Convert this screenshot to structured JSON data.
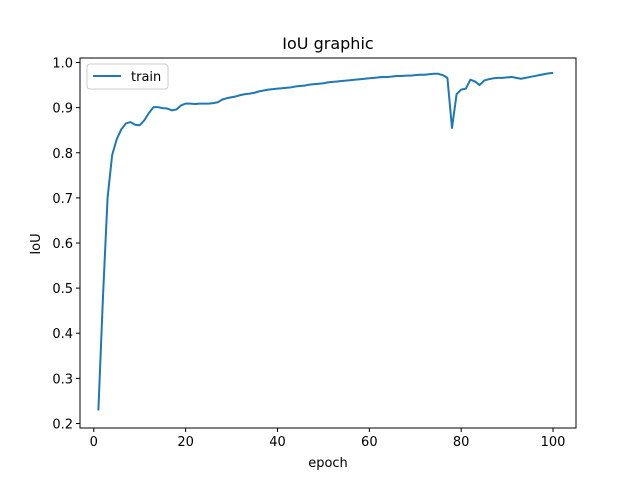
{
  "chart_data": {
    "type": "line",
    "title": "IoU graphic",
    "xlabel": "epoch",
    "ylabel": "IoU",
    "xlim": [
      -3,
      105
    ],
    "ylim": [
      0.19,
      1.01
    ],
    "xticks": [
      0,
      20,
      40,
      60,
      80,
      100
    ],
    "yticks": [
      0.2,
      0.3,
      0.4,
      0.5,
      0.6,
      0.7,
      0.8,
      0.9,
      1.0
    ],
    "grid": false,
    "legend_position": "upper-left",
    "series": [
      {
        "name": "train",
        "color": "#1f77b4",
        "x": [
          1,
          2,
          3,
          4,
          5,
          6,
          7,
          8,
          9,
          10,
          11,
          12,
          13,
          14,
          15,
          16,
          17,
          18,
          19,
          20,
          21,
          22,
          23,
          24,
          25,
          26,
          27,
          28,
          29,
          30,
          31,
          32,
          33,
          34,
          35,
          36,
          37,
          38,
          39,
          40,
          41,
          42,
          43,
          44,
          45,
          46,
          47,
          48,
          49,
          50,
          51,
          52,
          53,
          54,
          55,
          56,
          57,
          58,
          59,
          60,
          61,
          62,
          63,
          64,
          65,
          66,
          67,
          68,
          69,
          70,
          71,
          72,
          73,
          74,
          75,
          76,
          77,
          78,
          79,
          80,
          81,
          82,
          83,
          84,
          85,
          86,
          87,
          88,
          89,
          90,
          91,
          92,
          93,
          94,
          95,
          96,
          97,
          98,
          99,
          100
        ],
        "y": [
          0.229,
          0.48,
          0.7,
          0.795,
          0.83,
          0.852,
          0.865,
          0.868,
          0.862,
          0.861,
          0.872,
          0.888,
          0.901,
          0.901,
          0.899,
          0.898,
          0.894,
          0.896,
          0.905,
          0.909,
          0.909,
          0.908,
          0.909,
          0.909,
          0.909,
          0.91,
          0.912,
          0.918,
          0.921,
          0.923,
          0.925,
          0.928,
          0.93,
          0.931,
          0.933,
          0.936,
          0.938,
          0.94,
          0.941,
          0.942,
          0.943,
          0.944,
          0.945,
          0.947,
          0.948,
          0.949,
          0.951,
          0.952,
          0.953,
          0.954,
          0.956,
          0.957,
          0.958,
          0.959,
          0.96,
          0.961,
          0.962,
          0.963,
          0.964,
          0.965,
          0.966,
          0.967,
          0.968,
          0.968,
          0.969,
          0.97,
          0.97,
          0.971,
          0.971,
          0.972,
          0.973,
          0.973,
          0.974,
          0.975,
          0.975,
          0.972,
          0.966,
          0.855,
          0.93,
          0.94,
          0.942,
          0.962,
          0.958,
          0.95,
          0.96,
          0.963,
          0.965,
          0.966,
          0.966,
          0.967,
          0.968,
          0.966,
          0.964,
          0.966,
          0.968,
          0.97,
          0.972,
          0.974,
          0.976,
          0.977
        ]
      }
    ]
  }
}
